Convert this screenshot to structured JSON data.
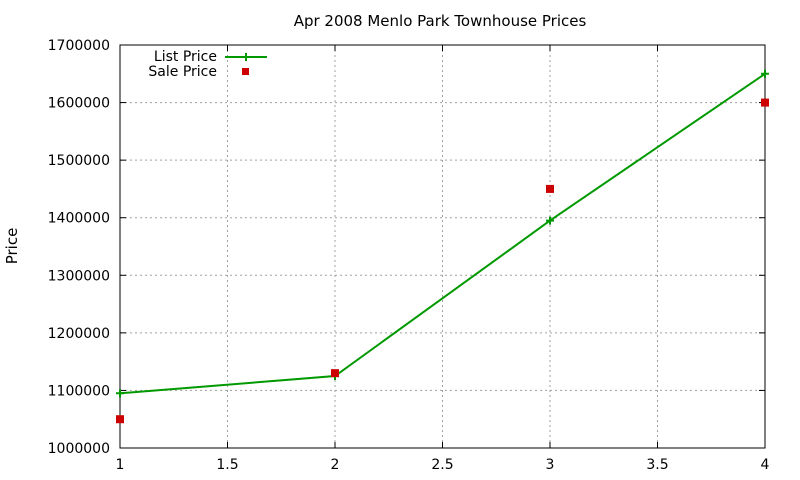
{
  "chart_data": {
    "type": "line",
    "title": "Apr 2008 Menlo Park Townhouse Prices",
    "xlabel": "",
    "ylabel": "Price",
    "xlim": [
      1,
      4
    ],
    "ylim": [
      1000000,
      1700000
    ],
    "xticks": [
      "1",
      "1.5",
      "2",
      "2.5",
      "3",
      "3.5",
      "4"
    ],
    "yticks": [
      "1000000",
      "1100000",
      "1200000",
      "1300000",
      "1400000",
      "1500000",
      "1600000",
      "1700000"
    ],
    "grid": true,
    "legend_position": "top-left",
    "series": [
      {
        "name": "List Price",
        "style": "line with plus markers",
        "color": "#009900",
        "x": [
          1,
          2,
          3,
          4
        ],
        "y": [
          1095000,
          1125000,
          1395000,
          1650000
        ]
      },
      {
        "name": "Sale Price",
        "style": "square markers",
        "color": "#cc0000",
        "x": [
          1,
          2,
          3,
          4
        ],
        "y": [
          1050000,
          1130000,
          1450000,
          1600000
        ]
      }
    ]
  }
}
